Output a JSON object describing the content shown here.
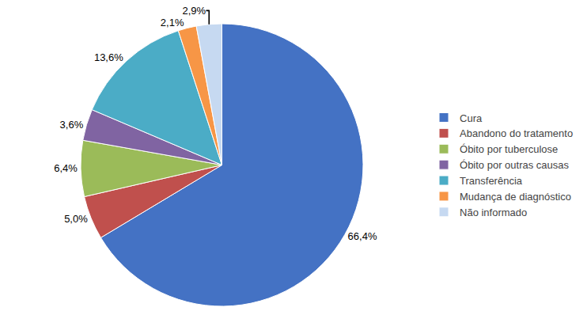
{
  "chart_data": {
    "type": "pie",
    "categories": [
      "Cura",
      "Abandono do tratamento",
      "Óbito por tuberculose",
      "Óbito por outras causas",
      "Transferência",
      "Mudança de diagnóstico",
      "Não informado"
    ],
    "values": [
      66.4,
      5.0,
      6.4,
      3.6,
      13.6,
      2.1,
      2.9
    ],
    "value_labels": [
      "66,4%",
      "5,0%",
      "6,4%",
      "3,6%",
      "13,6%",
      "2,1%",
      "2,9%"
    ],
    "colors": [
      "#4472C4",
      "#C0504D",
      "#9BBB59",
      "#8064A2",
      "#4BACC6",
      "#F79646",
      "#C6D9F1"
    ],
    "data_labels": true,
    "legend": "right"
  }
}
